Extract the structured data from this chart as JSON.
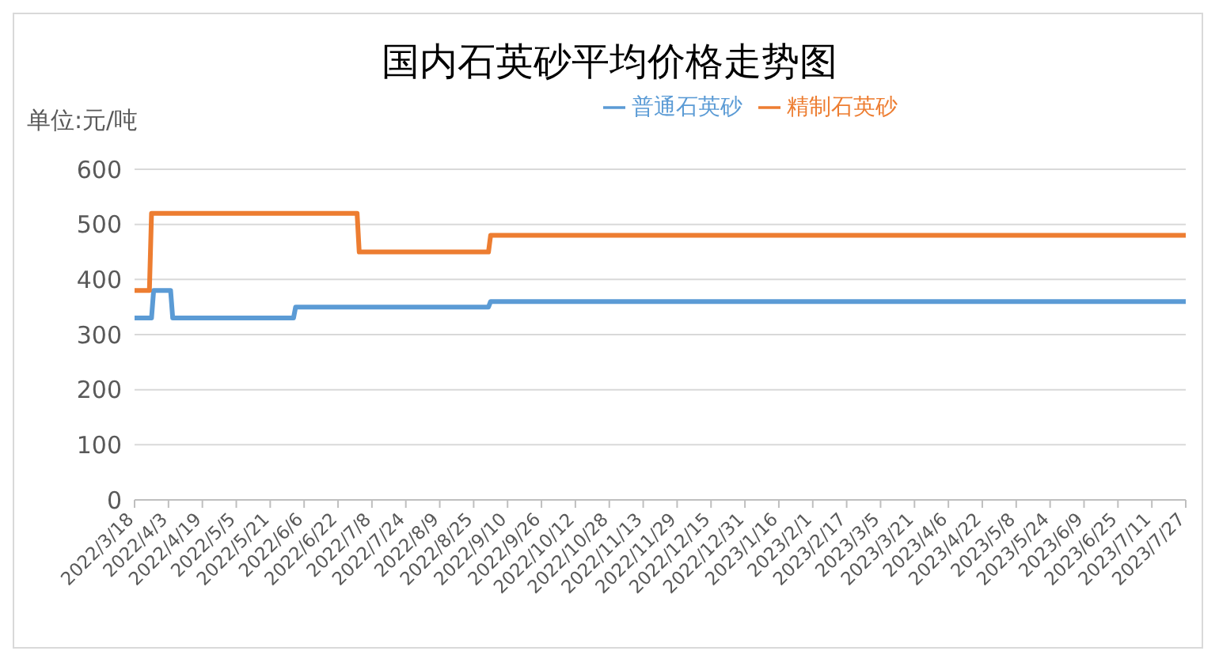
{
  "chart_data": {
    "type": "line",
    "title": "国内石英砂平均价格走势图",
    "ylabel": "单位:元/吨",
    "xlim": [
      "2022-03-18",
      "2023-07-27"
    ],
    "xticks": [
      {
        "value": "2022-03-18",
        "label": "2022/3/18"
      },
      {
        "value": "2022-04-03",
        "label": "2022/4/3"
      },
      {
        "value": "2022-04-19",
        "label": "2022/4/19"
      },
      {
        "value": "2022-05-05",
        "label": "2022/5/5"
      },
      {
        "value": "2022-05-21",
        "label": "2022/5/21"
      },
      {
        "value": "2022-06-06",
        "label": "2022/6/6"
      },
      {
        "value": "2022-06-22",
        "label": "2022/6/22"
      },
      {
        "value": "2022-07-08",
        "label": "2022/7/8"
      },
      {
        "value": "2022-07-24",
        "label": "2022/7/24"
      },
      {
        "value": "2022-08-09",
        "label": "2022/8/9"
      },
      {
        "value": "2022-08-25",
        "label": "2022/8/25"
      },
      {
        "value": "2022-09-10",
        "label": "2022/9/10"
      },
      {
        "value": "2022-09-26",
        "label": "2022/9/26"
      },
      {
        "value": "2022-10-12",
        "label": "2022/10/12"
      },
      {
        "value": "2022-10-28",
        "label": "2022/10/28"
      },
      {
        "value": "2022-11-13",
        "label": "2022/11/13"
      },
      {
        "value": "2022-11-29",
        "label": "2022/11/29"
      },
      {
        "value": "2022-12-15",
        "label": "2022/12/15"
      },
      {
        "value": "2022-12-31",
        "label": "2022/12/31"
      },
      {
        "value": "2023-01-16",
        "label": "2023/1/16"
      },
      {
        "value": "2023-02-01",
        "label": "2023/2/1"
      },
      {
        "value": "2023-02-17",
        "label": "2023/2/17"
      },
      {
        "value": "2023-03-05",
        "label": "2023/3/5"
      },
      {
        "value": "2023-03-21",
        "label": "2023/3/21"
      },
      {
        "value": "2023-04-06",
        "label": "2023/4/6"
      },
      {
        "value": "2023-04-22",
        "label": "2023/4/22"
      },
      {
        "value": "2023-05-08",
        "label": "2023/5/8"
      },
      {
        "value": "2023-05-24",
        "label": "2023/5/24"
      },
      {
        "value": "2023-06-09",
        "label": "2023/6/9"
      },
      {
        "value": "2023-06-25",
        "label": "2023/6/25"
      },
      {
        "value": "2023-07-11",
        "label": "2023/7/11"
      },
      {
        "value": "2023-07-27",
        "label": "2023/7/27"
      }
    ],
    "ylim": [
      0,
      600
    ],
    "yticks": [
      0,
      100,
      200,
      300,
      400,
      500,
      600
    ],
    "grid": "y",
    "legend": "top",
    "marker": "none",
    "line_style": "solid",
    "series": [
      {
        "name": "普通石英砂",
        "color": "#5b9bd5",
        "x": [
          "2022-03-18",
          "2022-03-26",
          "2022-03-27",
          "2022-04-04",
          "2022-04-05",
          "2022-06-01",
          "2022-06-02",
          "2022-09-01",
          "2022-09-02",
          "2023-07-27"
        ],
        "values": [
          330,
          330,
          380,
          380,
          330,
          330,
          350,
          350,
          360,
          360
        ]
      },
      {
        "name": "精制石英砂",
        "color": "#ed7d31",
        "x": [
          "2022-03-18",
          "2022-03-25",
          "2022-03-26",
          "2022-07-01",
          "2022-07-02",
          "2022-09-01",
          "2022-09-02",
          "2023-07-27"
        ],
        "values": [
          380,
          380,
          520,
          520,
          450,
          450,
          480,
          480
        ]
      }
    ]
  }
}
